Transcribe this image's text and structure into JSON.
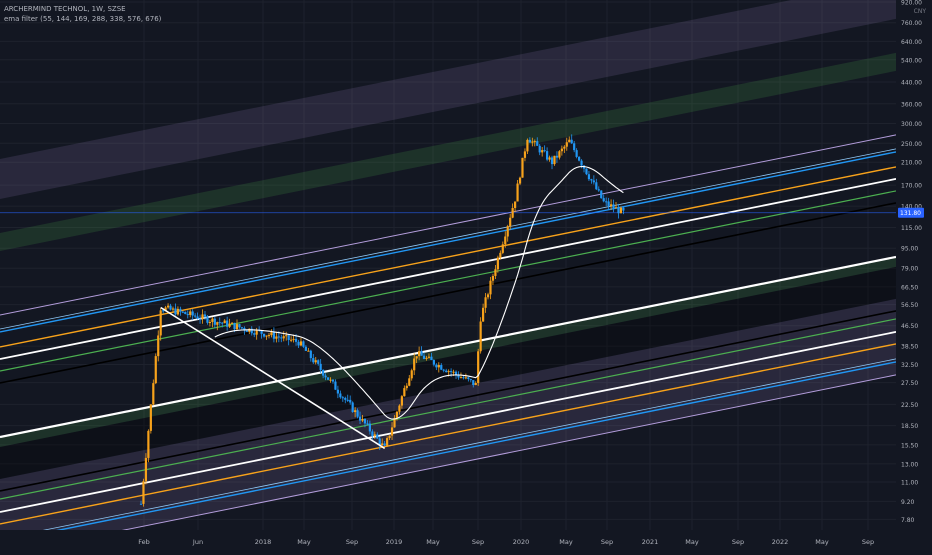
{
  "header": {
    "symbol_line": "ARCHERMIND TECHNOL, 1W, SZSE",
    "indicator_line": "ema filter (55, 144, 169, 288, 338, 576, 676)"
  },
  "currency": "CNY",
  "last_price": "131.80",
  "colors": {
    "background": "#131722",
    "up_candle": "#f7a21b",
    "down_candle": "#2196f3",
    "grid": "#1e222d",
    "axis_text": "#b2b5be",
    "price_line": "#2962ff"
  },
  "chart_data": {
    "type": "candlestick",
    "title": "ARCHERMIND TECHNOL, 1W, SZSE",
    "y_scale": "log",
    "ylim": [
      7.2,
      920
    ],
    "y_ticks": [
      "920.00",
      "760.00",
      "640.00",
      "540.00",
      "440.00",
      "360.00",
      "300.00",
      "250.00",
      "210.00",
      "170.00",
      "140.00",
      "115.00",
      "95.00",
      "79.00",
      "66.50",
      "56.50",
      "46.50",
      "38.50",
      "32.50",
      "27.50",
      "22.50",
      "18.50",
      "15.50",
      "13.00",
      "11.00",
      "9.20",
      "7.80"
    ],
    "x_ticks": [
      "Feb",
      "Jun",
      "2018",
      "May",
      "Sep",
      "2019",
      "May",
      "Sep",
      "2020",
      "May",
      "Sep",
      "2021",
      "May",
      "Sep",
      "2022",
      "May",
      "Sep"
    ],
    "key_points": [
      {
        "date": "2017-02-10",
        "price": 9.0
      },
      {
        "date": "2017-04-07",
        "price": 55.0
      },
      {
        "date": "2018-05-04",
        "price": 40.0
      },
      {
        "date": "2019-01-04",
        "price": 15.0
      },
      {
        "date": "2019-04-04",
        "price": 36.0
      },
      {
        "date": "2019-09-20",
        "price": 27.0
      },
      {
        "date": "2019-10-04",
        "price": 50.0
      },
      {
        "date": "2020-01-10",
        "price": 150.0
      },
      {
        "date": "2020-02-14",
        "price": 265.0
      },
      {
        "date": "2020-04-24",
        "price": 210.0
      },
      {
        "date": "2020-06-12",
        "price": 255.0
      },
      {
        "date": "2020-09-18",
        "price": 145.0
      },
      {
        "date": "2020-11-13",
        "price": 131.8
      }
    ],
    "last_close": 131.8,
    "drawings": [
      {
        "type": "trendline",
        "from": {
          "date": "2017-04-07",
          "price": 55.0
        },
        "to": {
          "date": "2019-01-04",
          "price": 15.0
        }
      }
    ],
    "ema_lengths": [
      55,
      144,
      169,
      288,
      338,
      576,
      676
    ],
    "grid": true
  }
}
